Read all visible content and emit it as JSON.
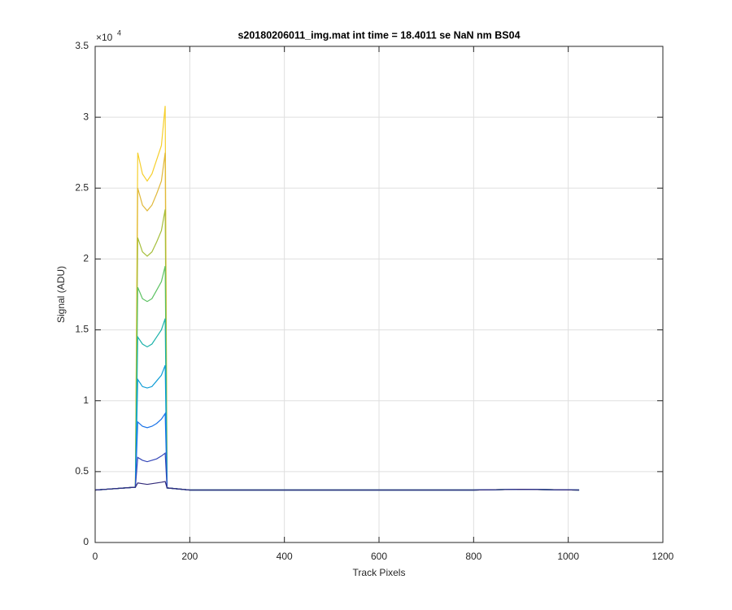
{
  "chart_data": {
    "type": "line",
    "title": "s20180206011_img.mat int time = 18.4011 se  NaN nm BS04",
    "x_label": "Track Pixels",
    "y_label": "Signal (ADU)",
    "y_multiplier": {
      "base": "×10",
      "exponent": "4"
    },
    "xlim": [
      0,
      1200
    ],
    "xticks": [
      0,
      200,
      400,
      600,
      800,
      1000,
      1200
    ],
    "ylim": [
      0,
      35000
    ],
    "yticks": [
      {
        "value": 0,
        "label": "0"
      },
      {
        "value": 5000,
        "label": "0.5"
      },
      {
        "value": 10000,
        "label": "1"
      },
      {
        "value": 15000,
        "label": "1.5"
      },
      {
        "value": 20000,
        "label": "2"
      },
      {
        "value": 25000,
        "label": "2.5"
      },
      {
        "value": 30000,
        "label": "3"
      },
      {
        "value": 35000,
        "label": "3.5"
      }
    ],
    "grid": true,
    "x": [
      0,
      85,
      90,
      100,
      110,
      120,
      130,
      140,
      148,
      152,
      200,
      400,
      600,
      800,
      900,
      1023
    ],
    "series": [
      {
        "color": "#f6cf2c",
        "values": [
          3700,
          3900,
          27500,
          26000,
          25500,
          26000,
          27000,
          28000,
          30800,
          3850,
          3700,
          3700,
          3700,
          3700,
          3750,
          3700
        ]
      },
      {
        "color": "#e0b83a",
        "values": [
          3700,
          3900,
          25000,
          23800,
          23400,
          23800,
          24600,
          25500,
          27500,
          3850,
          3700,
          3700,
          3700,
          3700,
          3750,
          3700
        ]
      },
      {
        "color": "#a5be3a",
        "values": [
          3700,
          3900,
          21500,
          20500,
          20200,
          20500,
          21200,
          22000,
          23500,
          3850,
          3700,
          3700,
          3700,
          3700,
          3750,
          3700
        ]
      },
      {
        "color": "#5cc262",
        "values": [
          3700,
          3900,
          18000,
          17200,
          17000,
          17200,
          17800,
          18400,
          19500,
          3850,
          3700,
          3700,
          3700,
          3700,
          3750,
          3700
        ]
      },
      {
        "color": "#1cb2aa",
        "values": [
          3700,
          3900,
          14500,
          14000,
          13800,
          14000,
          14500,
          15000,
          15800,
          3850,
          3700,
          3700,
          3700,
          3700,
          3750,
          3700
        ]
      },
      {
        "color": "#0d9cd6",
        "values": [
          3700,
          3900,
          11500,
          11000,
          10900,
          11000,
          11400,
          11800,
          12500,
          3850,
          3700,
          3700,
          3700,
          3700,
          3750,
          3700
        ]
      },
      {
        "color": "#1a73e8",
        "values": [
          3700,
          3900,
          8500,
          8200,
          8100,
          8200,
          8400,
          8700,
          9100,
          3850,
          3700,
          3700,
          3700,
          3700,
          3750,
          3700
        ]
      },
      {
        "color": "#3547b8",
        "values": [
          3700,
          3900,
          6000,
          5800,
          5700,
          5800,
          5900,
          6100,
          6300,
          3850,
          3700,
          3700,
          3700,
          3700,
          3750,
          3700
        ]
      },
      {
        "color": "#332b7a",
        "values": [
          3700,
          3900,
          4200,
          4150,
          4100,
          4150,
          4200,
          4250,
          4300,
          3850,
          3700,
          3700,
          3700,
          3700,
          3750,
          3700
        ]
      }
    ]
  }
}
